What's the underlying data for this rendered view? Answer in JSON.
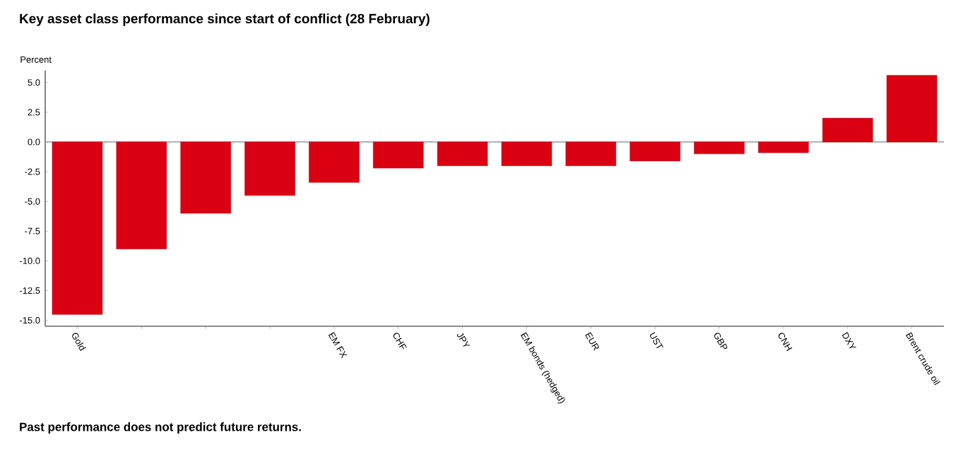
{
  "chart_data": {
    "type": "bar",
    "title": "Key asset class performance since start of conflict (28 February)",
    "ylabel": "Percent",
    "categories": [
      "Gold",
      null,
      null,
      null,
      "EM FX",
      "CHF",
      "JPY",
      "EM bonds (hedged)",
      "EUR",
      "UST",
      "GBP",
      "CNH",
      "DXY",
      "Brent crude oil"
    ],
    "values": [
      -14.5,
      -9.0,
      -6.0,
      -4.5,
      -3.4,
      -2.2,
      -2.0,
      -2.0,
      -2.0,
      -1.6,
      -1.0,
      -0.9,
      2.0,
      5.6
    ],
    "color": "#db0011",
    "ylim": [
      -15.5,
      6.0
    ],
    "yticks": [
      {
        "value": -15,
        "label": "-15.0"
      },
      {
        "value": -12.5,
        "label": "-12.5"
      },
      {
        "value": -10,
        "label": "-10.0"
      },
      {
        "value": -7.5,
        "label": "-7.5"
      },
      {
        "value": -5,
        "label": "-5.0"
      },
      {
        "value": -2.5,
        "label": "-2.5"
      },
      {
        "value": 0,
        "label": "0.0"
      },
      {
        "value": 2.5,
        "label": "2.5"
      },
      {
        "value": 5,
        "label": "5.0"
      }
    ],
    "ref_lines": [
      {
        "axis": "y",
        "value": 0,
        "color": "#999999"
      }
    ],
    "annotations": [
      "Past performance does not predict future returns."
    ]
  }
}
